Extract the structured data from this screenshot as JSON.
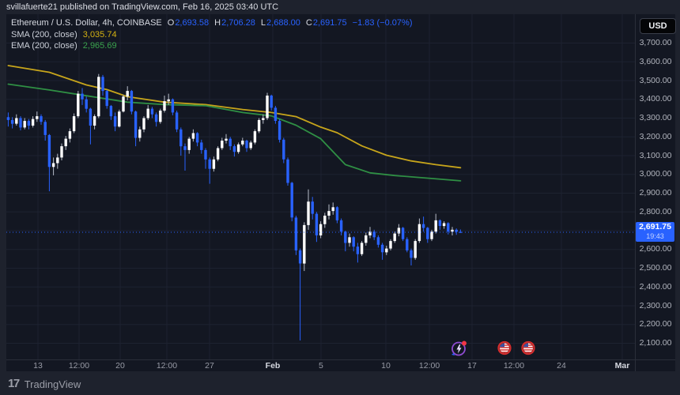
{
  "publish_bar": {
    "text": "svillafuerte21 published on TradingView.com, Feb 16, 2025 03:40 UTC"
  },
  "legend": {
    "symbol": "Ethereum / U.S. Dollar, 4h, COINBASE",
    "ohlc": {
      "o_label": "O",
      "o": "2,693.58",
      "h_label": "H",
      "h": "2,706.28",
      "l_label": "L",
      "l": "2,688.00",
      "c_label": "C",
      "c": "2,691.75",
      "change": "−1.83 (−0.07%)"
    },
    "sma": {
      "label": "SMA (200, close)",
      "value": "3,035.74"
    },
    "ema": {
      "label": "EMA (200, close)",
      "value": "2,965.69"
    }
  },
  "price_axis": {
    "currency": "USD",
    "labels": [
      "3,700.00",
      "3,600.00",
      "3,500.00",
      "3,400.00",
      "3,300.00",
      "3,200.00",
      "3,100.00",
      "3,000.00",
      "2,900.00",
      "2,800.00",
      "2,700.00",
      "2,600.00",
      "2,500.00",
      "2,400.00",
      "2,300.00",
      "2,200.00",
      "2,100.00"
    ],
    "tag": {
      "price": "2,691.75",
      "countdown": "19:43"
    }
  },
  "time_axis": {
    "labels": [
      {
        "text": "13",
        "xf": 0.0503
      },
      {
        "text": "12:00",
        "xf": 0.1157
      },
      {
        "text": "20",
        "xf": 0.1811
      },
      {
        "text": "12:00",
        "xf": 0.2553
      },
      {
        "text": "27",
        "xf": 0.3233
      },
      {
        "text": "Feb",
        "xf": 0.4239,
        "bold": true
      },
      {
        "text": "5",
        "xf": 0.5006
      },
      {
        "text": "10",
        "xf": 0.6038
      },
      {
        "text": "12:00",
        "xf": 0.673
      },
      {
        "text": "17",
        "xf": 0.7409
      },
      {
        "text": "12:00",
        "xf": 0.8075
      },
      {
        "text": "24",
        "xf": 0.883
      },
      {
        "text": "Mar",
        "xf": 0.9799,
        "bold": true
      }
    ]
  },
  "footer": {
    "brand": "TradingView",
    "glyph": "17"
  },
  "colors": {
    "page_bg": "#1e222d",
    "chart_bg": "#131722",
    "grid": "#1d2230",
    "axis_border": "#2a2e39",
    "up": "#ffffff",
    "up_wick": "#b7bcc8",
    "down": "#2962ff",
    "accent_blue": "#2962ff",
    "sma_line": "#c7a51b",
    "ema_line": "#2f8f44",
    "axis_text": "#b2b5be",
    "event_purple": "#8e4bd0",
    "event_red": "#f23645",
    "flag_red": "#d32f2f",
    "flag_blue": "#3c4fa0"
  },
  "chart_data": {
    "type": "candlestick",
    "title": "Ethereum / U.S. Dollar, 4h, COINBASE",
    "current_price": 2691.75,
    "price_range": {
      "min": 2100,
      "max": 3700,
      "step": 100
    },
    "legend_position": "top-left",
    "grid": true,
    "candles": [
      [
        3305,
        3330,
        3255,
        3290
      ],
      [
        3290,
        3305,
        3245,
        3270
      ],
      [
        3270,
        3320,
        3260,
        3300
      ],
      [
        3300,
        3310,
        3235,
        3250
      ],
      [
        3250,
        3300,
        3240,
        3285
      ],
      [
        3285,
        3295,
        3240,
        3260
      ],
      [
        3260,
        3310,
        3250,
        3295
      ],
      [
        3295,
        3335,
        3280,
        3310
      ],
      [
        3310,
        3320,
        3265,
        3280
      ],
      [
        3280,
        3290,
        3180,
        3210
      ],
      [
        3210,
        3215,
        2910,
        3040
      ],
      [
        3040,
        3090,
        2995,
        3060
      ],
      [
        3060,
        3110,
        3030,
        3090
      ],
      [
        3090,
        3165,
        3075,
        3150
      ],
      [
        3150,
        3205,
        3130,
        3190
      ],
      [
        3190,
        3245,
        3170,
        3230
      ],
      [
        3230,
        3325,
        3220,
        3310
      ],
      [
        3310,
        3445,
        3300,
        3430
      ],
      [
        3430,
        3460,
        3370,
        3400
      ],
      [
        3400,
        3415,
        3330,
        3350
      ],
      [
        3350,
        3355,
        3160,
        3260
      ],
      [
        3260,
        3320,
        3240,
        3310
      ],
      [
        3310,
        3535,
        3300,
        3520
      ],
      [
        3520,
        3530,
        3420,
        3445
      ],
      [
        3445,
        3450,
        3350,
        3365
      ],
      [
        3365,
        3370,
        3290,
        3310
      ],
      [
        3310,
        3330,
        3230,
        3255
      ],
      [
        3255,
        3345,
        3250,
        3335
      ],
      [
        3335,
        3425,
        3330,
        3415
      ],
      [
        3415,
        3470,
        3395,
        3445
      ],
      [
        3445,
        3450,
        3320,
        3335
      ],
      [
        3335,
        3340,
        3150,
        3195
      ],
      [
        3195,
        3255,
        3175,
        3240
      ],
      [
        3240,
        3310,
        3225,
        3300
      ],
      [
        3300,
        3370,
        3290,
        3350
      ],
      [
        3350,
        3360,
        3300,
        3320
      ],
      [
        3320,
        3330,
        3255,
        3280
      ],
      [
        3280,
        3350,
        3270,
        3340
      ],
      [
        3340,
        3420,
        3330,
        3390
      ],
      [
        3390,
        3430,
        3370,
        3400
      ],
      [
        3400,
        3405,
        3315,
        3330
      ],
      [
        3330,
        3340,
        3225,
        3240
      ],
      [
        3240,
        3250,
        3100,
        3150
      ],
      [
        3150,
        3165,
        3020,
        3130
      ],
      [
        3130,
        3200,
        3110,
        3190
      ],
      [
        3190,
        3240,
        3175,
        3220
      ],
      [
        3220,
        3225,
        3150,
        3170
      ],
      [
        3170,
        3185,
        3110,
        3130
      ],
      [
        3130,
        3140,
        3030,
        3080
      ],
      [
        3080,
        3090,
        2950,
        3030
      ],
      [
        3030,
        3095,
        3015,
        3080
      ],
      [
        3080,
        3150,
        3070,
        3140
      ],
      [
        3140,
        3195,
        3130,
        3180
      ],
      [
        3180,
        3215,
        3165,
        3190
      ],
      [
        3190,
        3200,
        3130,
        3150
      ],
      [
        3150,
        3160,
        3095,
        3120
      ],
      [
        3120,
        3170,
        3110,
        3160
      ],
      [
        3160,
        3195,
        3150,
        3180
      ],
      [
        3180,
        3185,
        3120,
        3140
      ],
      [
        3140,
        3180,
        3130,
        3170
      ],
      [
        3170,
        3240,
        3160,
        3230
      ],
      [
        3230,
        3300,
        3220,
        3290
      ],
      [
        3290,
        3320,
        3270,
        3300
      ],
      [
        3300,
        3435,
        3290,
        3420
      ],
      [
        3420,
        3425,
        3340,
        3355
      ],
      [
        3355,
        3365,
        3270,
        3285
      ],
      [
        3285,
        3295,
        3170,
        3185
      ],
      [
        3185,
        3195,
        3060,
        3080
      ],
      [
        3080,
        3090,
        2940,
        2955
      ],
      [
        2955,
        2960,
        2750,
        2770
      ],
      [
        2770,
        2780,
        2570,
        2595
      ],
      [
        2595,
        2605,
        2115,
        2525
      ],
      [
        2525,
        2745,
        2485,
        2730
      ],
      [
        2730,
        2920,
        2705,
        2855
      ],
      [
        2855,
        2880,
        2760,
        2790
      ],
      [
        2790,
        2800,
        2640,
        2675
      ],
      [
        2675,
        2750,
        2660,
        2735
      ],
      [
        2735,
        2795,
        2715,
        2780
      ],
      [
        2780,
        2840,
        2760,
        2805
      ],
      [
        2805,
        2850,
        2785,
        2825
      ],
      [
        2825,
        2830,
        2740,
        2755
      ],
      [
        2755,
        2765,
        2675,
        2695
      ],
      [
        2695,
        2700,
        2590,
        2635
      ],
      [
        2635,
        2685,
        2615,
        2665
      ],
      [
        2665,
        2670,
        2590,
        2615
      ],
      [
        2615,
        2635,
        2530,
        2575
      ],
      [
        2575,
        2645,
        2565,
        2635
      ],
      [
        2635,
        2690,
        2620,
        2675
      ],
      [
        2675,
        2720,
        2660,
        2695
      ],
      [
        2695,
        2705,
        2650,
        2665
      ],
      [
        2665,
        2675,
        2610,
        2625
      ],
      [
        2625,
        2635,
        2545,
        2585
      ],
      [
        2585,
        2620,
        2570,
        2605
      ],
      [
        2605,
        2655,
        2595,
        2645
      ],
      [
        2645,
        2695,
        2635,
        2685
      ],
      [
        2685,
        2735,
        2670,
        2715
      ],
      [
        2715,
        2720,
        2645,
        2655
      ],
      [
        2655,
        2665,
        2585,
        2595
      ],
      [
        2595,
        2605,
        2515,
        2555
      ],
      [
        2555,
        2655,
        2545,
        2645
      ],
      [
        2645,
        2765,
        2635,
        2735
      ],
      [
        2735,
        2775,
        2695,
        2715
      ],
      [
        2715,
        2720,
        2635,
        2655
      ],
      [
        2655,
        2705,
        2645,
        2695
      ],
      [
        2695,
        2790,
        2685,
        2755
      ],
      [
        2755,
        2760,
        2705,
        2725
      ],
      [
        2725,
        2750,
        2710,
        2740
      ],
      [
        2740,
        2745,
        2680,
        2695
      ],
      [
        2695,
        2720,
        2675,
        2705
      ],
      [
        2705,
        2712,
        2678,
        2693.58
      ],
      [
        2693.58,
        2706.28,
        2688,
        2691.75
      ]
    ],
    "series": [
      {
        "name": "SMA (200, close)",
        "last": 3035.74,
        "points": [
          [
            0,
            3580
          ],
          [
            10,
            3544
          ],
          [
            19,
            3477
          ],
          [
            24,
            3452
          ],
          [
            29,
            3414
          ],
          [
            38,
            3385
          ],
          [
            48,
            3372
          ],
          [
            57,
            3346
          ],
          [
            64,
            3330
          ],
          [
            70,
            3308
          ],
          [
            76,
            3252
          ],
          [
            80,
            3222
          ],
          [
            86,
            3152
          ],
          [
            92,
            3102
          ],
          [
            98,
            3072
          ],
          [
            104,
            3052
          ],
          [
            110,
            3035.74
          ]
        ]
      },
      {
        "name": "EMA (200, close)",
        "last": 2965.69,
        "points": [
          [
            0,
            3481
          ],
          [
            10,
            3450
          ],
          [
            19,
            3419
          ],
          [
            29,
            3385
          ],
          [
            38,
            3372
          ],
          [
            48,
            3366
          ],
          [
            57,
            3330
          ],
          [
            64,
            3312
          ],
          [
            70,
            3262
          ],
          [
            76,
            3190
          ],
          [
            82,
            3052
          ],
          [
            88,
            3008
          ],
          [
            94,
            2994
          ],
          [
            102,
            2980
          ],
          [
            110,
            2965.69
          ]
        ]
      }
    ],
    "events": [
      {
        "type": "economic-flash",
        "xf": 0.7208
      },
      {
        "type": "economic-us-flag",
        "xf": 0.7925
      },
      {
        "type": "economic-us-flag",
        "xf": 0.8302
      }
    ]
  }
}
